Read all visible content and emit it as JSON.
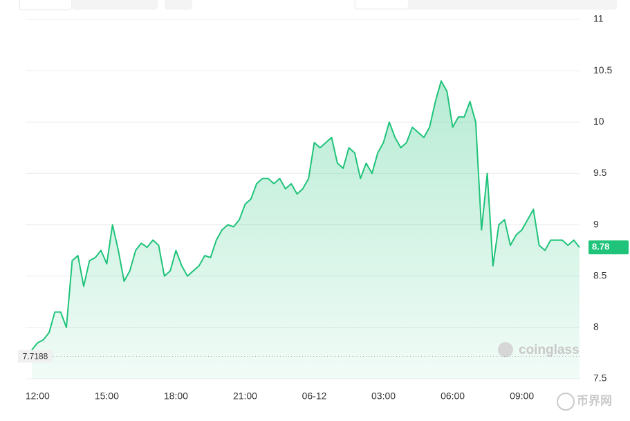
{
  "chart_data": {
    "type": "area",
    "categories": [
      null,
      "12:00",
      null,
      null,
      null,
      null,
      null,
      null,
      null,
      null,
      null,
      null,
      null,
      "15:00",
      null,
      null,
      null,
      null,
      null,
      null,
      null,
      null,
      null,
      null,
      null,
      "18:00",
      null,
      null,
      null,
      null,
      null,
      null,
      null,
      null,
      null,
      null,
      null,
      "21:00",
      null,
      null,
      null,
      null,
      null,
      null,
      null,
      null,
      null,
      null,
      null,
      "06-12",
      null,
      null,
      null,
      null,
      null,
      null,
      null,
      null,
      null,
      null,
      null,
      "03:00",
      null,
      null,
      null,
      null,
      null,
      null,
      null,
      null,
      null,
      null,
      null,
      "06:00",
      null,
      null,
      null,
      null,
      null,
      null,
      null,
      null,
      null,
      null,
      null,
      "09:00",
      null,
      null,
      null,
      null,
      null,
      null,
      null,
      null,
      null,
      null
    ],
    "series": [
      {
        "color": "#1fc37a",
        "values": [
          7.78,
          7.85,
          7.88,
          7.95,
          8.15,
          8.15,
          8.0,
          8.65,
          8.7,
          8.4,
          8.65,
          8.68,
          8.75,
          8.62,
          9.0,
          8.75,
          8.45,
          8.55,
          8.75,
          8.82,
          8.78,
          8.85,
          8.8,
          8.5,
          8.55,
          8.75,
          8.6,
          8.5,
          8.55,
          8.6,
          8.7,
          8.68,
          8.85,
          8.95,
          9.0,
          8.98,
          9.05,
          9.2,
          9.25,
          9.4,
          9.45,
          9.45,
          9.4,
          9.45,
          9.35,
          9.4,
          9.3,
          9.35,
          9.45,
          9.8,
          9.75,
          9.8,
          9.85,
          9.6,
          9.55,
          9.75,
          9.7,
          9.45,
          9.6,
          9.5,
          9.7,
          9.8,
          10.0,
          9.85,
          9.75,
          9.8,
          9.95,
          9.9,
          9.85,
          9.95,
          10.2,
          10.4,
          10.3,
          9.95,
          10.05,
          10.05,
          10.2,
          10.0,
          8.95,
          9.5,
          8.6,
          9.0,
          9.05,
          8.8,
          8.9,
          8.95,
          9.05,
          9.15,
          8.8,
          8.75,
          8.85,
          8.85,
          8.85,
          8.8,
          8.85,
          8.78
        ]
      }
    ],
    "ylim": [
      7.5,
      11
    ],
    "yticks": [
      7.5,
      8,
      8.5,
      9,
      9.5,
      10,
      10.5,
      11
    ],
    "grid": true,
    "min_line": 7.7188,
    "watermark": "coinglass",
    "source_mark": "币界网"
  }
}
